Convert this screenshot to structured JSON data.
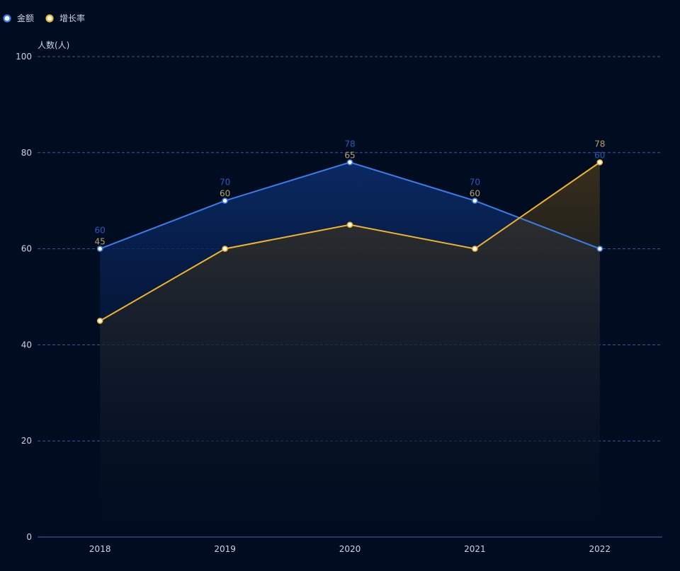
{
  "chart_data": {
    "type": "area",
    "categories": [
      "2018",
      "2019",
      "2020",
      "2021",
      "2022"
    ],
    "series": [
      {
        "name": "金额",
        "values": [
          60,
          70,
          78,
          70,
          60
        ],
        "color": "#3b7ee8",
        "label_color": "#2a5bbf"
      },
      {
        "name": "增长率",
        "values": [
          45,
          60,
          65,
          60,
          78
        ],
        "color": "#f0b32e",
        "label_color": "#b8a070"
      }
    ],
    "ylabel": "人数(人)",
    "ylim": [
      0,
      100
    ],
    "yticks": [
      0,
      20,
      40,
      60,
      80,
      100
    ],
    "grid": true,
    "legend_position": "top-left"
  },
  "colors": {
    "background": "#000c1f",
    "grid": "#3a5a9a",
    "axis_text": "#c8d4ea"
  }
}
